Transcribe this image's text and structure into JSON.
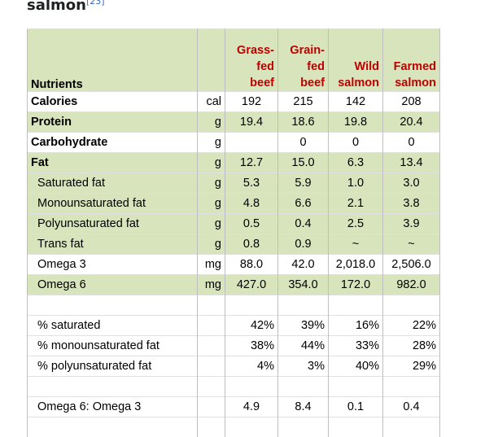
{
  "heading": {
    "text": "salmon",
    "ref": "[23]"
  },
  "table": {
    "corner": "Nutrients",
    "columns": [
      [
        "Grass-",
        "fed",
        "beef"
      ],
      [
        "Grain-",
        "fed",
        "beef"
      ],
      [
        "Wild",
        "salmon"
      ],
      [
        "Farmed",
        "salmon"
      ]
    ],
    "sections": [
      [
        {
          "label": "Calories",
          "unit": "cal",
          "values": [
            "192",
            "215",
            "142",
            "208"
          ]
        },
        {
          "label": "Protein",
          "unit": "g",
          "values": [
            "19.4",
            "18.6",
            "19.8",
            "20.4"
          ]
        },
        {
          "label": "Carbohydrate",
          "unit": "g",
          "values": [
            null,
            "0",
            "0",
            "0"
          ]
        },
        {
          "label": "Fat",
          "unit": "g",
          "values": [
            "12.7",
            "15.0",
            "6.3",
            "13.4"
          ]
        },
        {
          "label": "Saturated fat",
          "unit": "g",
          "values": [
            "5.3",
            "5.9",
            "1.0",
            "3.0"
          ]
        },
        {
          "label": "Monounsaturated fat",
          "unit": "g",
          "values": [
            "4.8",
            "6.6",
            "2.1",
            "3.8"
          ]
        },
        {
          "label": "Polyunsaturated fat",
          "unit": "g",
          "values": [
            "0.5",
            "0.4",
            "2.5",
            "3.9"
          ]
        },
        {
          "label": "Trans fat",
          "unit": "g",
          "values": [
            "0.8",
            "0.9",
            "~",
            "~"
          ]
        },
        {
          "label": "Omega 3",
          "unit": "mg",
          "values": [
            "88.0",
            "42.0",
            "2,018.0",
            "2,506.0"
          ]
        },
        {
          "label": "Omega 6",
          "unit": "mg",
          "values": [
            "427.0",
            "354.0",
            "172.0",
            "982.0"
          ]
        }
      ],
      [
        {
          "label": "% saturated",
          "values": [
            "42%",
            "39%",
            "16%",
            "22%"
          ]
        },
        {
          "label": "% monounsaturated fat",
          "values": [
            "38%",
            "44%",
            "33%",
            "28%"
          ]
        },
        {
          "label": "% polyunsaturated fat",
          "values": [
            "4%",
            "3%",
            "40%",
            "29%"
          ]
        }
      ],
      [
        {
          "label": "Omega 6: Omega 3",
          "values": [
            "4.9",
            "8.4",
            "0.1",
            "0.4"
          ]
        }
      ]
    ]
  }
}
